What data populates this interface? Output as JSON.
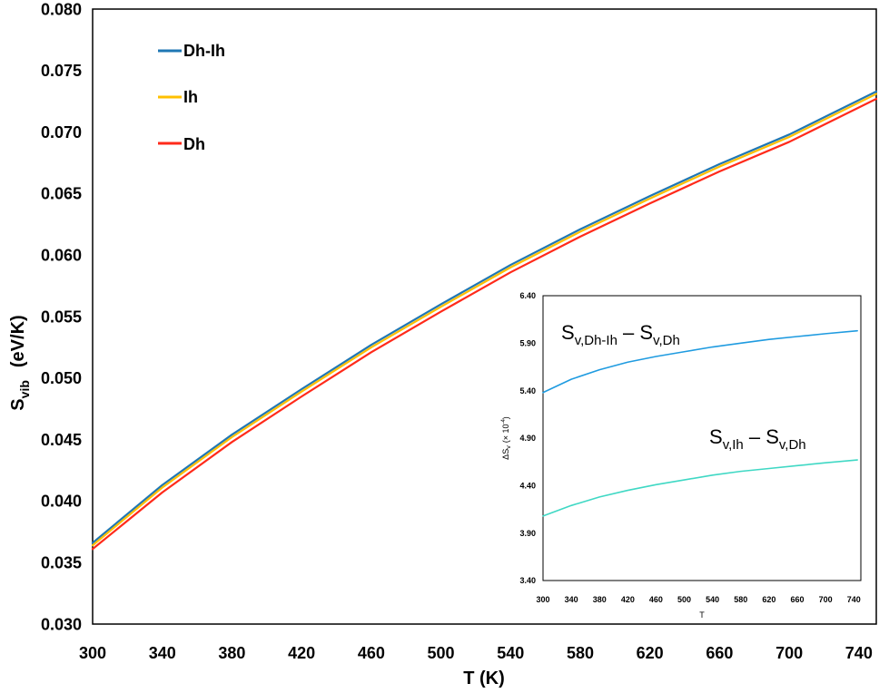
{
  "chart_data": [
    {
      "type": "line",
      "xlabel": "T    (K)",
      "ylabel": "S",
      "ylabel_sub": "vib",
      "ylabel_units": "(eV/K)",
      "xlim": [
        300,
        750
      ],
      "ylim": [
        0.03,
        0.08
      ],
      "xticks": [
        "300",
        "340",
        "380",
        "420",
        "460",
        "500",
        "540",
        "580",
        "620",
        "660",
        "700",
        "740"
      ],
      "yticks": [
        "0.030",
        "0.035",
        "0.040",
        "0.045",
        "0.050",
        "0.055",
        "0.060",
        "0.065",
        "0.070",
        "0.075",
        "0.080"
      ],
      "grid": false,
      "legend_position": "top-left",
      "x": [
        300,
        340,
        380,
        420,
        460,
        500,
        540,
        580,
        620,
        660,
        700,
        750
      ],
      "series": [
        {
          "name": "Dh-Ih",
          "color": "#1f77b4",
          "values": [
            0.0366,
            0.0413,
            0.0454,
            0.0491,
            0.0527,
            0.056,
            0.0592,
            0.0621,
            0.0648,
            0.0674,
            0.0698,
            0.0733
          ]
        },
        {
          "name": "Ih",
          "color": "#ffc000",
          "values": [
            0.0364,
            0.0411,
            0.0452,
            0.0489,
            0.0525,
            0.0558,
            0.059,
            0.0619,
            0.0646,
            0.0672,
            0.0696,
            0.0731
          ]
        },
        {
          "name": "Dh",
          "color": "#ff2a1a",
          "values": [
            0.0361,
            0.0407,
            0.0448,
            0.0485,
            0.0521,
            0.0554,
            0.0586,
            0.0615,
            0.0642,
            0.0668,
            0.0692,
            0.0727
          ]
        }
      ]
    },
    {
      "type": "line",
      "xlabel": "T",
      "ylabel": "ΔS",
      "ylabel_sub": "v",
      "ylabel_units": "(× 10",
      "ylabel_exp": "-4",
      "ylabel_close": ")",
      "xlim": [
        300,
        750
      ],
      "ylim": [
        3.4,
        6.4
      ],
      "xticks": [
        "300",
        "340",
        "380",
        "420",
        "460",
        "500",
        "540",
        "580",
        "620",
        "660",
        "700",
        "740"
      ],
      "yticks": [
        "3.40",
        "3.90",
        "4.40",
        "4.90",
        "5.40",
        "5.90",
        "6.40"
      ],
      "grid": false,
      "x": [
        300,
        340,
        380,
        420,
        460,
        500,
        540,
        580,
        620,
        660,
        700,
        745
      ],
      "series": [
        {
          "color": "#1f9be0",
          "values": [
            5.38,
            5.52,
            5.62,
            5.7,
            5.76,
            5.81,
            5.86,
            5.9,
            5.94,
            5.97,
            6.0,
            6.03
          ]
        },
        {
          "color": "#3fd8c4",
          "values": [
            4.08,
            4.19,
            4.28,
            4.35,
            4.41,
            4.46,
            4.51,
            4.55,
            4.58,
            4.61,
            4.64,
            4.67
          ]
        }
      ],
      "annotations": [
        {
          "main": "S",
          "sub1": "v,Dh-Ih",
          "minus": " – S",
          "sub2": "v,Dh"
        },
        {
          "main": "S",
          "sub1": "v,Ih",
          "minus": " – S",
          "sub2": "v,Dh"
        }
      ]
    }
  ]
}
